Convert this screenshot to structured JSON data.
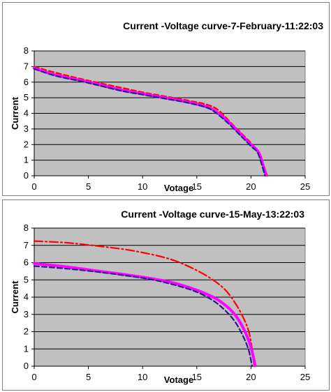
{
  "chart_data": [
    {
      "type": "line",
      "title": "Current -Voltage curve-7-February-11:22:03",
      "xlabel": "Votage",
      "ylabel": "Current",
      "xlim": [
        0,
        25
      ],
      "ylim": [
        0,
        8
      ],
      "xticks": [
        0,
        5,
        10,
        15,
        20,
        25
      ],
      "yticks": [
        0,
        1,
        2,
        3,
        4,
        5,
        6,
        7,
        8
      ],
      "grid": "horizontal",
      "plot_background": "#c0c0c0",
      "series": [
        {
          "color": "#ff0000",
          "style": "dash",
          "points": [
            [
              0,
              7.0
            ],
            [
              2,
              6.6
            ],
            [
              5,
              6.1
            ],
            [
              8,
              5.65
            ],
            [
              10,
              5.35
            ],
            [
              12,
              5.1
            ],
            [
              14,
              4.85
            ],
            [
              16,
              4.55
            ],
            [
              17,
              4.2
            ],
            [
              18,
              3.5
            ],
            [
              19,
              2.8
            ],
            [
              20,
              2.1
            ],
            [
              20.8,
              1.4
            ],
            [
              21.2,
              0.6
            ],
            [
              21.5,
              0.0
            ]
          ]
        },
        {
          "color": "#ff00ff",
          "style": "solid-markers",
          "points": [
            [
              0,
              6.9
            ],
            [
              2,
              6.45
            ],
            [
              5,
              6.0
            ],
            [
              8,
              5.5
            ],
            [
              10,
              5.25
            ],
            [
              12,
              5.0
            ],
            [
              14,
              4.75
            ],
            [
              16,
              4.4
            ],
            [
              17,
              4.0
            ],
            [
              18,
              3.4
            ],
            [
              19,
              2.7
            ],
            [
              20,
              2.0
            ],
            [
              20.7,
              1.5
            ],
            [
              21.1,
              0.7
            ],
            [
              21.4,
              0.0
            ]
          ]
        },
        {
          "color": "#1f1f8f",
          "style": "dash",
          "points": [
            [
              0,
              6.85
            ],
            [
              2,
              6.4
            ],
            [
              5,
              5.95
            ],
            [
              8,
              5.45
            ],
            [
              10,
              5.2
            ],
            [
              12,
              4.95
            ],
            [
              14,
              4.7
            ],
            [
              16,
              4.35
            ],
            [
              17,
              3.9
            ],
            [
              18,
              3.3
            ],
            [
              19,
              2.6
            ],
            [
              20,
              1.9
            ],
            [
              20.6,
              1.5
            ],
            [
              21.0,
              0.7
            ],
            [
              21.3,
              0.0
            ]
          ]
        }
      ]
    },
    {
      "type": "line",
      "title": "Current -Voltage curve-15-May-13:22:03",
      "xlabel": "Votage",
      "ylabel": "Current",
      "xlim": [
        0,
        25
      ],
      "ylim": [
        0,
        8
      ],
      "xticks": [
        0,
        5,
        10,
        15,
        20,
        25
      ],
      "yticks": [
        0,
        1,
        2,
        3,
        4,
        5,
        6,
        7,
        8
      ],
      "grid": "horizontal",
      "plot_background": "#c0c0c0",
      "series": [
        {
          "color": "#ff0000",
          "style": "dash-dot",
          "points": [
            [
              0,
              7.25
            ],
            [
              3,
              7.15
            ],
            [
              6,
              6.95
            ],
            [
              9,
              6.7
            ],
            [
              12,
              6.3
            ],
            [
              14,
              5.85
            ],
            [
              16,
              5.2
            ],
            [
              17.5,
              4.5
            ],
            [
              18.5,
              3.7
            ],
            [
              19.3,
              2.8
            ],
            [
              19.8,
              2.0
            ],
            [
              20.1,
              1.0
            ],
            [
              20.3,
              0.0
            ]
          ]
        },
        {
          "color": "#ff00ff",
          "style": "solid-markers",
          "points": [
            [
              0,
              5.95
            ],
            [
              3,
              5.75
            ],
            [
              6,
              5.5
            ],
            [
              9,
              5.25
            ],
            [
              11,
              5.05
            ],
            [
              13,
              4.8
            ],
            [
              15,
              4.4
            ],
            [
              16.5,
              4.0
            ],
            [
              17.5,
              3.6
            ],
            [
              18.5,
              3.0
            ],
            [
              19.3,
              2.2
            ],
            [
              19.9,
              1.3
            ],
            [
              20.2,
              0.6
            ],
            [
              20.4,
              0.0
            ]
          ]
        },
        {
          "color": "#1f1f8f",
          "style": "dash",
          "points": [
            [
              0,
              5.8
            ],
            [
              3,
              5.65
            ],
            [
              6,
              5.45
            ],
            [
              9,
              5.2
            ],
            [
              11,
              5.0
            ],
            [
              13,
              4.7
            ],
            [
              15,
              4.3
            ],
            [
              16.5,
              3.8
            ],
            [
              17.5,
              3.3
            ],
            [
              18.5,
              2.6
            ],
            [
              19.3,
              1.7
            ],
            [
              19.8,
              0.9
            ],
            [
              20.1,
              0.0
            ]
          ]
        }
      ]
    }
  ]
}
